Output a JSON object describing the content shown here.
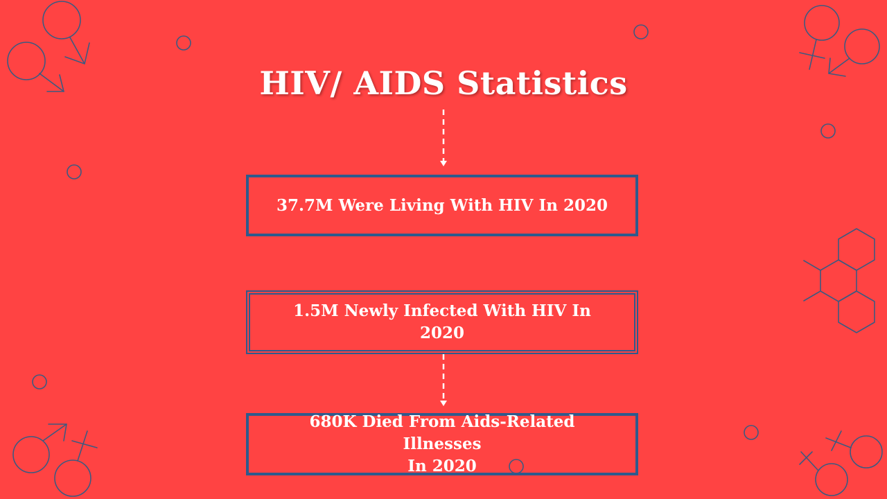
{
  "colors": {
    "background": "#ff4343",
    "box_border": "#2e5a8c",
    "text": "#ffffff",
    "decoration_stroke": "#3d5a80",
    "connector": "#ffffff"
  },
  "title": "HIV/ AIDS Statistics",
  "stats": [
    {
      "lines": [
        "37.7M Were Living With HIV In 2020"
      ]
    },
    {
      "lines": [
        "1.5M Newly Infected With HIV In 2020"
      ]
    },
    {
      "lines": [
        "680K Died From Aids-Related Illnesses",
        "In 2020"
      ]
    }
  ],
  "decorations": {
    "icons": [
      "male-symbol-icon",
      "female-symbol-icon",
      "hexagon-molecule-icon",
      "small-circle-icon"
    ]
  }
}
